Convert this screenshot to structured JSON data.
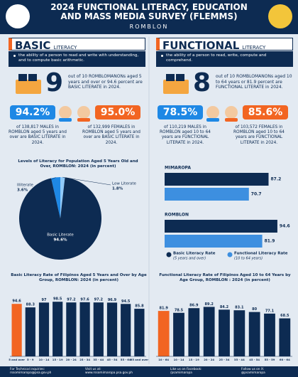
{
  "header": {
    "title_line1": "2024 FUNCTIONAL LITERACY, EDUCATION",
    "title_line2": "AND MASS MEDIA SURVEY (FLEMMS)",
    "subtitle": "ROMBLON"
  },
  "basic": {
    "heading": "BASIC",
    "heading_suffix": "LITERACY",
    "definition": "the ability of a person to read and write with understanding, and to compute basic arithmetic.",
    "headline_number": 9,
    "headline_text": "out of 10 ROMBLOMANONs aged 5 years and over or 94.6 percent are BASIC LITERATE in 2024.",
    "male": {
      "rate": "94.2%",
      "text": "of 138,817 MALES in ROMBLON aged 5 years and over are BASIC LITERATE in 2024."
    },
    "female": {
      "rate": "95.0%",
      "text": "of 132,999 FEMALES in ROMBLON aged 5 years and over are BASIC LITERATE in 2024."
    }
  },
  "functional": {
    "heading": "FUNCTIONAL",
    "heading_suffix": "LITERACY",
    "definition": "the ability of a person to read, write, compute and comprehend.",
    "headline_number": 8,
    "headline_text": "out of 10 ROMBLOMANONs aged 10 to 64 years or 81.9 percent are FUNCTIONAL LITERATE in 2024.",
    "male": {
      "rate": "78.5%",
      "text": "of 110,219 MALES in ROMBLON aged 10 to 64 years are FUNCTIONAL LITERATE in 2024."
    },
    "female": {
      "rate": "85.6%",
      "text": "of 103,572 FEMALES in ROMBLON aged 10 to 64 years are FUNCTIONAL LITERATE in 2024."
    }
  },
  "chart_data": [
    {
      "type": "pie",
      "title": "Levels of Literacy for Population Aged 5 Years Old and Over, ROMBLON: 2024 (in percent)",
      "categories": [
        "Illiterate",
        "Low Literate",
        "Basic Literate"
      ],
      "values": [
        3.6,
        1.8,
        94.6
      ],
      "value_labels": [
        "3.6%",
        "1.8%",
        "94.6%"
      ],
      "colors": [
        "#1e88e5",
        "#90caf9",
        "#0d2b52"
      ]
    },
    {
      "type": "hbar",
      "categories": [
        "MIMAROPA",
        "ROMBLON"
      ],
      "series": [
        {
          "name": "Basic Literacy Rate",
          "note": "(5 years and over)",
          "color": "#0d2b52",
          "values": [
            87.2,
            94.6
          ]
        },
        {
          "name": "Functional Literacy Rate",
          "note": "(10 to 64 years)",
          "color": "#3d8fe0",
          "values": [
            70.7,
            81.9
          ]
        }
      ],
      "xlim": [
        0,
        100
      ]
    },
    {
      "type": "bar",
      "title": "Basic Literacy Rate of Filipinos Aged 5 Years and Over by Age Group, ROMBLON: 2024 (in percent)",
      "categories": [
        "5 and over",
        "5 - 9",
        "10 - 14",
        "15 - 19",
        "20 - 24",
        "25 - 34",
        "35 - 44",
        "45 - 54",
        "55 - 64",
        "65 and over"
      ],
      "values": [
        94.6,
        88.3,
        97.0,
        98.5,
        97.2,
        97.6,
        97.2,
        96.9,
        94.5,
        85.8
      ],
      "colors": [
        "#f26522",
        "#0d2b52",
        "#0d2b52",
        "#0d2b52",
        "#0d2b52",
        "#0d2b52",
        "#0d2b52",
        "#0d2b52",
        "#0d2b52",
        "#0d2b52"
      ],
      "ylim": [
        0,
        100
      ]
    },
    {
      "type": "bar",
      "title": "Functional Literacy Rate of Filipinos Aged 10 to 64 Years by Age Group, ROMBLON : 2024 (in percent)",
      "categories": [
        "10 - 64",
        "10 - 14",
        "15 - 19",
        "20 - 24",
        "25 - 34",
        "35 - 44",
        "45 - 54",
        "55 - 59",
        "60 - 64"
      ],
      "values": [
        81.9,
        78.5,
        86.9,
        89.2,
        84.2,
        83.1,
        80.0,
        77.1,
        68.5
      ],
      "colors": [
        "#f26522",
        "#0d2b52",
        "#0d2b52",
        "#0d2b52",
        "#0d2b52",
        "#0d2b52",
        "#0d2b52",
        "#0d2b52",
        "#0d2b52"
      ],
      "ylim": [
        0,
        100
      ]
    }
  ],
  "footer": [
    {
      "label": "For Technical inquiries:",
      "value": "rssomimaropa@psa.gov.ph"
    },
    {
      "label": "Visit us at:",
      "value": "www.rssomimaropa.psa.gov.ph"
    },
    {
      "label": "Like us on Facebook:",
      "value": "/psamimaropa"
    },
    {
      "label": "Follow us on X:",
      "value": "@psamimaropa"
    }
  ]
}
